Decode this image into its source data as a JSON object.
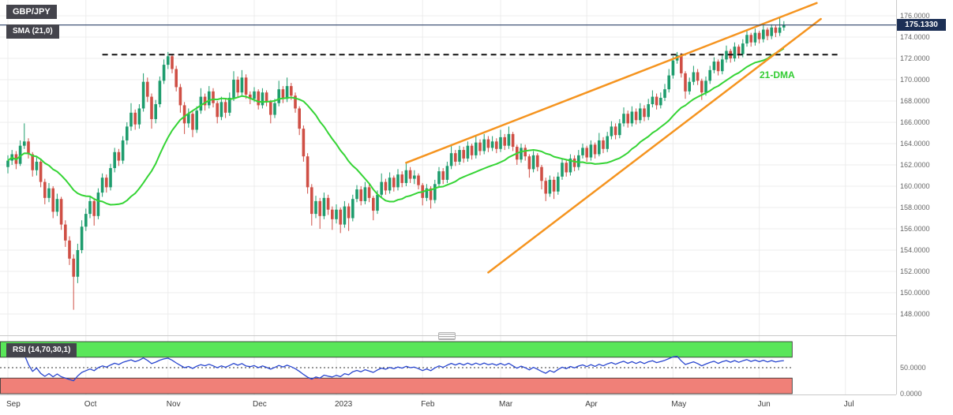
{
  "header": {
    "symbol_label": "GBP/JPY",
    "sma_label": "SMA (21,0)"
  },
  "price_marker": {
    "label": "175.1330"
  },
  "annotations": {
    "dma_label": "21-DMA"
  },
  "rsi": {
    "label": "RSI (14,70,30,1)",
    "period": 14,
    "upper_level": 70,
    "lower_level": 30,
    "mid_level": 50,
    "axis_labels": [
      {
        "text": "50.0000",
        "value": 50
      },
      {
        "text": "0.0000",
        "value": 0
      }
    ]
  },
  "price_axis": {
    "top_value": 176,
    "step": 2,
    "labels": [
      "176.0000",
      "174.0000",
      "172.0000",
      "170.0000",
      "168.0000",
      "166.0000",
      "164.0000",
      "162.0000",
      "160.0000",
      "158.0000",
      "156.0000",
      "154.0000",
      "152.0000",
      "150.0000",
      "148.0000"
    ]
  },
  "time_axis": {
    "labels": [
      {
        "text": "Sep",
        "index": 0
      },
      {
        "text": "Oct",
        "index": 19
      },
      {
        "text": "Nov",
        "index": 39
      },
      {
        "text": "Dec",
        "index": 60
      },
      {
        "text": "2023",
        "index": 80
      },
      {
        "text": "Feb",
        "index": 101
      },
      {
        "text": "Mar",
        "index": 120
      },
      {
        "text": "Apr",
        "index": 141
      },
      {
        "text": "May",
        "index": 162
      },
      {
        "text": "Jun",
        "index": 183
      },
      {
        "text": "Jul",
        "index": 204
      }
    ]
  },
  "colors": {
    "up": "#1e9c6d",
    "down": "#cf4f45",
    "sma": "#35d435",
    "trend": "#f5941f",
    "rsi_line": "#2946cf",
    "price_line": "#2b4168",
    "price_bg": "#1c2f55",
    "badge_bg": "#44444c",
    "badge_text": "#ffffff",
    "band_green": "#59e659",
    "band_red": "#f08078",
    "band_border": "#2a2a2a",
    "dashed": "#111111",
    "grid": "#ececec",
    "axis_border": "#c9c9c9",
    "axis_text": "#666666",
    "time_text": "#3d3d3d",
    "dma_text": "#33cc33"
  },
  "chart_data": {
    "type": "candlestick",
    "symbol": "GBP/JPY",
    "last_price": 175.133,
    "sma_period": 21,
    "rsi_period": 14,
    "dashed_level": {
      "price": 172.35,
      "from_index": 23,
      "to_index": 203
    },
    "trendlines": [
      {
        "name": "upper-channel",
        "from": {
          "index": 97,
          "price": 162.2
        },
        "to": {
          "index": 197,
          "price": 177.2
        }
      },
      {
        "name": "lower-channel",
        "from": {
          "index": 117,
          "price": 151.9
        },
        "to": {
          "index": 198,
          "price": 175.7
        }
      }
    ],
    "candles": [
      [
        161.8,
        162.9,
        161.2,
        162.4
      ],
      [
        162.4,
        163.4,
        162.0,
        163.0
      ],
      [
        163.0,
        163.3,
        161.6,
        162.1
      ],
      [
        162.1,
        164.3,
        161.9,
        163.8
      ],
      [
        163.8,
        165.9,
        163.5,
        164.2
      ],
      [
        164.2,
        164.5,
        162.6,
        163.0
      ],
      [
        163.0,
        163.2,
        160.9,
        161.5
      ],
      [
        161.5,
        162.8,
        161.0,
        162.3
      ],
      [
        162.3,
        162.5,
        159.9,
        160.4
      ],
      [
        160.4,
        160.7,
        158.3,
        158.9
      ],
      [
        158.9,
        160.3,
        158.5,
        159.8
      ],
      [
        159.8,
        160.0,
        157.0,
        157.6
      ],
      [
        157.6,
        159.3,
        157.2,
        158.8
      ],
      [
        158.8,
        159.0,
        155.9,
        156.4
      ],
      [
        156.4,
        156.8,
        154.3,
        154.9
      ],
      [
        154.9,
        155.3,
        152.6,
        153.2
      ],
      [
        153.2,
        153.6,
        148.4,
        151.5
      ],
      [
        151.5,
        154.6,
        150.9,
        154.0
      ],
      [
        154.0,
        156.8,
        153.7,
        156.2
      ],
      [
        156.2,
        157.9,
        155.8,
        157.4
      ],
      [
        157.4,
        159.0,
        157.0,
        158.6
      ],
      [
        158.6,
        158.9,
        156.3,
        157.2
      ],
      [
        157.2,
        159.8,
        156.9,
        159.4
      ],
      [
        159.4,
        161.2,
        159.0,
        160.8
      ],
      [
        160.8,
        161.1,
        159.4,
        159.9
      ],
      [
        159.9,
        162.1,
        159.6,
        161.7
      ],
      [
        161.7,
        163.6,
        161.3,
        163.2
      ],
      [
        163.2,
        163.5,
        161.9,
        162.4
      ],
      [
        162.4,
        164.7,
        162.1,
        164.3
      ],
      [
        164.3,
        166.0,
        163.9,
        165.6
      ],
      [
        165.6,
        167.8,
        165.2,
        166.9
      ],
      [
        166.9,
        167.2,
        165.3,
        165.8
      ],
      [
        165.8,
        167.7,
        165.4,
        167.3
      ],
      [
        167.3,
        170.6,
        167.0,
        169.8
      ],
      [
        169.8,
        170.2,
        167.9,
        168.4
      ],
      [
        168.4,
        168.7,
        165.4,
        166.3
      ],
      [
        166.3,
        168.1,
        165.9,
        167.7
      ],
      [
        167.7,
        170.3,
        167.4,
        169.9
      ],
      [
        169.9,
        171.9,
        169.6,
        171.4
      ],
      [
        171.4,
        172.6,
        171.0,
        172.2
      ],
      [
        172.2,
        172.4,
        170.6,
        171.0
      ],
      [
        171.0,
        171.3,
        168.9,
        169.3
      ],
      [
        169.3,
        169.6,
        166.9,
        167.6
      ],
      [
        167.6,
        167.9,
        164.9,
        165.9
      ],
      [
        165.9,
        167.3,
        165.5,
        166.8
      ],
      [
        166.8,
        167.0,
        164.6,
        165.3
      ],
      [
        165.3,
        167.5,
        165.0,
        167.1
      ],
      [
        167.1,
        169.2,
        166.8,
        168.4
      ],
      [
        168.4,
        168.7,
        167.1,
        167.6
      ],
      [
        167.6,
        169.4,
        167.3,
        168.9
      ],
      [
        168.9,
        169.2,
        167.4,
        167.8
      ],
      [
        167.8,
        168.0,
        165.9,
        166.5
      ],
      [
        166.5,
        168.4,
        166.2,
        167.9
      ],
      [
        167.9,
        168.2,
        166.4,
        166.9
      ],
      [
        166.9,
        168.8,
        166.6,
        168.3
      ],
      [
        168.3,
        170.8,
        168.0,
        170.0
      ],
      [
        170.0,
        170.3,
        168.4,
        168.8
      ],
      [
        168.8,
        170.9,
        168.5,
        170.2
      ],
      [
        170.2,
        170.5,
        168.2,
        168.6
      ],
      [
        168.6,
        168.9,
        167.7,
        168.2
      ],
      [
        168.2,
        169.3,
        167.9,
        168.9
      ],
      [
        168.9,
        169.1,
        167.2,
        167.6
      ],
      [
        167.6,
        169.2,
        167.3,
        168.8
      ],
      [
        168.8,
        169.0,
        167.5,
        167.9
      ],
      [
        167.9,
        168.1,
        165.9,
        166.7
      ],
      [
        166.7,
        168.2,
        166.4,
        167.8
      ],
      [
        167.8,
        169.9,
        167.5,
        169.1
      ],
      [
        169.1,
        169.4,
        167.8,
        168.2
      ],
      [
        168.2,
        170.2,
        167.9,
        169.4
      ],
      [
        169.4,
        169.7,
        168.1,
        168.5
      ],
      [
        168.5,
        168.8,
        166.9,
        167.3
      ],
      [
        167.3,
        167.5,
        164.8,
        165.4
      ],
      [
        165.4,
        165.7,
        162.3,
        162.8
      ],
      [
        162.8,
        163.1,
        159.3,
        159.9
      ],
      [
        159.9,
        160.2,
        156.3,
        157.4
      ],
      [
        157.4,
        159.1,
        157.0,
        158.6
      ],
      [
        158.6,
        158.9,
        156.0,
        157.2
      ],
      [
        157.2,
        159.4,
        156.9,
        158.9
      ],
      [
        158.9,
        159.2,
        157.3,
        157.8
      ],
      [
        157.8,
        158.1,
        155.9,
        156.9
      ],
      [
        156.9,
        158.3,
        156.5,
        157.8
      ],
      [
        157.8,
        158.0,
        155.6,
        156.4
      ],
      [
        156.4,
        158.6,
        156.1,
        158.1
      ],
      [
        158.1,
        158.4,
        155.8,
        157.0
      ],
      [
        157.0,
        159.2,
        156.7,
        158.8
      ],
      [
        158.8,
        160.1,
        158.5,
        159.7
      ],
      [
        159.7,
        160.0,
        158.2,
        158.6
      ],
      [
        158.6,
        160.4,
        158.3,
        159.9
      ],
      [
        159.9,
        160.2,
        158.5,
        158.9
      ],
      [
        158.9,
        159.1,
        156.8,
        157.7
      ],
      [
        157.7,
        159.6,
        157.4,
        159.2
      ],
      [
        159.2,
        161.2,
        158.9,
        160.4
      ],
      [
        160.4,
        160.7,
        159.2,
        159.6
      ],
      [
        159.6,
        161.3,
        159.3,
        160.8
      ],
      [
        160.8,
        161.0,
        159.5,
        159.9
      ],
      [
        159.9,
        161.6,
        159.6,
        161.1
      ],
      [
        161.1,
        161.4,
        159.9,
        160.3
      ],
      [
        160.3,
        162.2,
        160.0,
        161.5
      ],
      [
        161.5,
        161.8,
        160.3,
        160.7
      ],
      [
        160.7,
        161.5,
        160.2,
        161.0
      ],
      [
        161.0,
        161.2,
        159.7,
        160.1
      ],
      [
        160.1,
        160.3,
        158.2,
        158.9
      ],
      [
        158.9,
        160.2,
        158.6,
        159.8
      ],
      [
        159.8,
        160.0,
        157.9,
        158.7
      ],
      [
        158.7,
        160.6,
        158.4,
        160.2
      ],
      [
        160.2,
        161.8,
        159.9,
        161.4
      ],
      [
        161.4,
        161.7,
        160.2,
        160.6
      ],
      [
        160.6,
        162.3,
        160.3,
        161.9
      ],
      [
        161.9,
        163.8,
        161.6,
        163.1
      ],
      [
        163.1,
        163.4,
        161.9,
        162.3
      ],
      [
        162.3,
        163.8,
        162.0,
        163.4
      ],
      [
        163.4,
        163.7,
        162.2,
        162.6
      ],
      [
        162.6,
        164.2,
        162.3,
        163.8
      ],
      [
        163.8,
        164.0,
        162.5,
        162.9
      ],
      [
        162.9,
        164.8,
        162.6,
        164.1
      ],
      [
        164.1,
        164.4,
        162.9,
        163.3
      ],
      [
        163.3,
        164.9,
        163.0,
        164.4
      ],
      [
        164.4,
        164.7,
        163.2,
        163.6
      ],
      [
        163.6,
        164.7,
        163.3,
        164.2
      ],
      [
        164.2,
        164.5,
        163.1,
        163.5
      ],
      [
        163.5,
        165.3,
        163.2,
        164.6
      ],
      [
        164.6,
        164.9,
        163.4,
        163.8
      ],
      [
        163.8,
        165.6,
        163.5,
        164.9
      ],
      [
        164.9,
        165.1,
        163.3,
        163.7
      ],
      [
        163.7,
        163.9,
        162.0,
        162.5
      ],
      [
        162.5,
        164.0,
        162.2,
        163.6
      ],
      [
        163.6,
        163.9,
        162.4,
        162.8
      ],
      [
        162.8,
        163.0,
        160.8,
        161.6
      ],
      [
        161.6,
        163.3,
        161.3,
        162.9
      ],
      [
        162.9,
        163.1,
        161.4,
        161.8
      ],
      [
        161.8,
        162.0,
        159.7,
        160.5
      ],
      [
        160.5,
        160.8,
        158.6,
        159.3
      ],
      [
        159.3,
        161.0,
        159.0,
        160.6
      ],
      [
        160.6,
        160.9,
        158.8,
        159.5
      ],
      [
        159.5,
        161.3,
        159.2,
        160.9
      ],
      [
        160.9,
        162.6,
        160.6,
        162.2
      ],
      [
        162.2,
        162.5,
        160.9,
        161.3
      ],
      [
        161.3,
        163.0,
        161.0,
        162.6
      ],
      [
        162.6,
        162.9,
        161.4,
        161.8
      ],
      [
        161.8,
        163.4,
        161.5,
        162.9
      ],
      [
        162.9,
        164.0,
        162.6,
        163.6
      ],
      [
        163.6,
        163.8,
        162.3,
        162.7
      ],
      [
        162.7,
        164.3,
        162.4,
        163.9
      ],
      [
        163.9,
        164.1,
        162.6,
        163.0
      ],
      [
        163.0,
        165.0,
        162.8,
        164.3
      ],
      [
        164.3,
        164.6,
        163.1,
        163.5
      ],
      [
        163.5,
        165.1,
        163.2,
        164.7
      ],
      [
        164.7,
        166.1,
        164.4,
        165.6
      ],
      [
        165.6,
        165.9,
        164.4,
        164.8
      ],
      [
        164.8,
        166.3,
        164.5,
        165.9
      ],
      [
        165.9,
        167.4,
        165.6,
        166.8
      ],
      [
        166.8,
        167.1,
        165.5,
        165.9
      ],
      [
        165.9,
        167.5,
        165.6,
        167.0
      ],
      [
        167.0,
        167.3,
        165.8,
        166.2
      ],
      [
        166.2,
        167.8,
        165.9,
        167.3
      ],
      [
        167.3,
        167.6,
        166.1,
        166.5
      ],
      [
        166.5,
        168.2,
        166.2,
        167.7
      ],
      [
        167.7,
        169.0,
        167.4,
        168.4
      ],
      [
        168.4,
        168.7,
        167.2,
        167.6
      ],
      [
        167.6,
        168.8,
        167.3,
        168.3
      ],
      [
        168.3,
        169.6,
        168.0,
        169.1
      ],
      [
        169.1,
        171.0,
        168.8,
        170.4
      ],
      [
        170.4,
        172.2,
        170.1,
        171.8
      ],
      [
        171.8,
        172.6,
        171.5,
        172.3
      ],
      [
        172.3,
        172.5,
        170.2,
        170.6
      ],
      [
        170.6,
        170.8,
        168.2,
        168.9
      ],
      [
        168.9,
        170.2,
        168.6,
        169.8
      ],
      [
        169.8,
        171.3,
        169.5,
        170.7
      ],
      [
        170.7,
        171.0,
        169.5,
        169.9
      ],
      [
        169.9,
        170.1,
        168.1,
        168.8
      ],
      [
        168.8,
        170.3,
        168.5,
        169.9
      ],
      [
        169.9,
        171.3,
        169.6,
        170.9
      ],
      [
        170.9,
        172.1,
        170.6,
        171.7
      ],
      [
        171.7,
        171.9,
        170.4,
        170.8
      ],
      [
        170.8,
        172.3,
        170.5,
        171.9
      ],
      [
        171.9,
        173.2,
        171.6,
        172.7
      ],
      [
        172.7,
        172.9,
        171.6,
        172.0
      ],
      [
        172.0,
        173.5,
        171.7,
        173.1
      ],
      [
        173.1,
        173.3,
        172.0,
        172.4
      ],
      [
        172.4,
        173.8,
        172.1,
        173.4
      ],
      [
        173.4,
        174.6,
        173.1,
        174.2
      ],
      [
        174.2,
        174.4,
        173.1,
        173.5
      ],
      [
        173.5,
        174.8,
        173.2,
        174.4
      ],
      [
        174.4,
        174.6,
        173.4,
        173.8
      ],
      [
        173.8,
        175.1,
        173.5,
        174.7
      ],
      [
        174.7,
        174.9,
        173.7,
        174.1
      ],
      [
        174.1,
        175.2,
        173.8,
        174.9
      ],
      [
        174.9,
        175.1,
        174.0,
        174.4
      ],
      [
        174.4,
        175.9,
        174.1,
        174.9
      ],
      [
        174.9,
        175.5,
        174.6,
        175.133
      ]
    ]
  }
}
